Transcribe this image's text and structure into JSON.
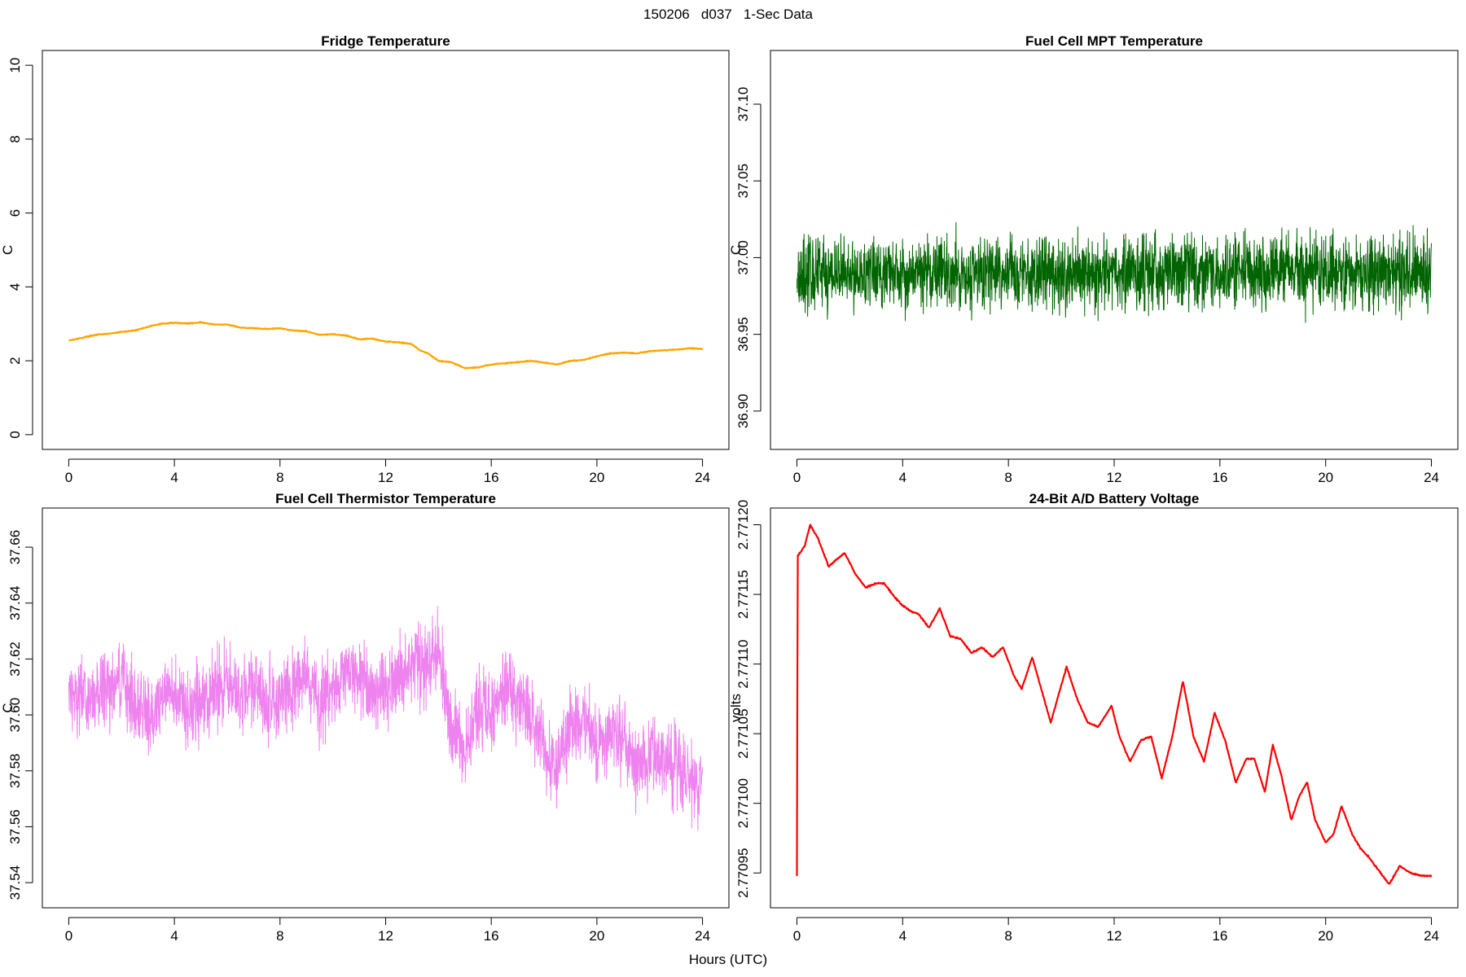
{
  "figure": {
    "title": "150206   d037   1-Sec Data",
    "xlabel": "Hours (UTC)"
  },
  "chart_data": [
    {
      "id": "fridge",
      "type": "line",
      "title": "Fridge Temperature",
      "ylabel": "C",
      "color": "#FFA500",
      "xlim": [
        -1,
        25
      ],
      "ylim": [
        -0.4,
        10.4
      ],
      "xticks": [
        0,
        4,
        8,
        12,
        16,
        20,
        24
      ],
      "yticks": [
        0,
        2,
        4,
        6,
        8,
        10
      ],
      "ytick_labels": [
        "0",
        "2",
        "4",
        "6",
        "8",
        "10"
      ],
      "noise": 0.02,
      "x": [
        0,
        0.5,
        1,
        1.5,
        2,
        2.5,
        3,
        3.5,
        4,
        4.5,
        5,
        5.5,
        6,
        6.5,
        7,
        7.5,
        8,
        8.5,
        9,
        9.5,
        10,
        10.5,
        11,
        11.5,
        12,
        12.5,
        13,
        13.3,
        13.6,
        14,
        14.5,
        15,
        15.5,
        16,
        16.5,
        17,
        17.5,
        18,
        18.5,
        19,
        19.5,
        20,
        20.5,
        21,
        21.5,
        22,
        22.5,
        23,
        23.5,
        24
      ],
      "y": [
        2.55,
        2.62,
        2.7,
        2.73,
        2.78,
        2.82,
        2.92,
        3.0,
        3.03,
        3.01,
        3.04,
        2.98,
        2.98,
        2.9,
        2.88,
        2.86,
        2.88,
        2.82,
        2.8,
        2.7,
        2.72,
        2.68,
        2.58,
        2.6,
        2.52,
        2.5,
        2.45,
        2.28,
        2.2,
        2.0,
        1.96,
        1.8,
        1.82,
        1.9,
        1.93,
        1.96,
        2.0,
        1.95,
        1.9,
        2.0,
        2.02,
        2.12,
        2.2,
        2.22,
        2.2,
        2.26,
        2.28,
        2.3,
        2.34,
        2.32
      ]
    },
    {
      "id": "mpt",
      "type": "line",
      "title": "Fuel Cell MPT Temperature",
      "ylabel": "C",
      "color": "#006400",
      "xlim": [
        -1,
        25
      ],
      "ylim": [
        36.875,
        37.135
      ],
      "xticks": [
        0,
        4,
        8,
        12,
        16,
        20,
        24
      ],
      "yticks": [
        36.9,
        36.95,
        37.0,
        37.05,
        37.1
      ],
      "ytick_labels": [
        "36.90",
        "36.95",
        "37.00",
        "37.05",
        "37.10"
      ],
      "noise": 0.035,
      "x": [
        0,
        24
      ],
      "y": [
        36.99,
        36.99
      ]
    },
    {
      "id": "thermistor",
      "type": "line",
      "title": "Fuel Cell Thermistor Temperature",
      "ylabel": "C",
      "color": "#EE82EE",
      "xlim": [
        -1,
        25
      ],
      "ylim": [
        37.531,
        37.674
      ],
      "xticks": [
        0,
        4,
        8,
        12,
        16,
        20,
        24
      ],
      "yticks": [
        37.54,
        37.56,
        37.58,
        37.6,
        37.62,
        37.64,
        37.66
      ],
      "ytick_labels": [
        "37.54",
        "37.56",
        "37.58",
        "37.60",
        "37.62",
        "37.64",
        "37.66"
      ],
      "noise": 0.02,
      "x": [
        0,
        0.5,
        1,
        1.5,
        2,
        2.5,
        3,
        3.5,
        4,
        4.5,
        5,
        5.5,
        6,
        6.5,
        7,
        7.5,
        8,
        8.5,
        9,
        9.5,
        10,
        10.5,
        11,
        11.5,
        12,
        12.5,
        13,
        13.5,
        14,
        14.5,
        15,
        15.5,
        16,
        16.5,
        17,
        17.5,
        18,
        18.5,
        19,
        19.5,
        20,
        20.5,
        21,
        21.5,
        22,
        22.5,
        23,
        23.5,
        24
      ],
      "y": [
        37.61,
        37.606,
        37.605,
        37.61,
        37.612,
        37.606,
        37.6,
        37.606,
        37.608,
        37.6,
        37.605,
        37.61,
        37.61,
        37.608,
        37.61,
        37.605,
        37.606,
        37.61,
        37.614,
        37.604,
        37.61,
        37.614,
        37.616,
        37.608,
        37.61,
        37.614,
        37.62,
        37.618,
        37.622,
        37.596,
        37.585,
        37.604,
        37.6,
        37.61,
        37.605,
        37.6,
        37.59,
        37.582,
        37.596,
        37.6,
        37.586,
        37.594,
        37.592,
        37.58,
        37.585,
        37.584,
        37.582,
        37.578,
        37.575
      ]
    },
    {
      "id": "battery",
      "type": "line",
      "title": "24-Bit A/D Battery Voltage",
      "ylabel": "volts",
      "color": "#FF0000",
      "xlim": [
        -1,
        25
      ],
      "ylim": [
        2.770925,
        2.771212
      ],
      "xticks": [
        0,
        4,
        8,
        12,
        16,
        20,
        24
      ],
      "yticks": [
        2.77095,
        2.771,
        2.77105,
        2.7711,
        2.77115,
        2.7712
      ],
      "ytick_labels": [
        "2.77095",
        "2.77100",
        "2.77105",
        "2.77110",
        "2.77115",
        "2.77120"
      ],
      "noise": 8e-07,
      "x": [
        0,
        0.03,
        0.05,
        0.3,
        0.5,
        0.8,
        1.2,
        1.5,
        1.8,
        2.2,
        2.6,
        3.0,
        3.3,
        3.7,
        4.0,
        4.3,
        4.6,
        5.0,
        5.4,
        5.8,
        6.2,
        6.6,
        7.0,
        7.4,
        7.8,
        8.2,
        8.5,
        8.9,
        9.2,
        9.6,
        10.2,
        10.6,
        11.0,
        11.4,
        11.9,
        12.2,
        12.6,
        13.0,
        13.4,
        13.8,
        14.2,
        14.6,
        15.0,
        15.4,
        15.8,
        16.2,
        16.6,
        17.0,
        17.3,
        17.7,
        18.0,
        18.3,
        18.7,
        19.0,
        19.3,
        19.6,
        20.0,
        20.3,
        20.6,
        21.0,
        21.3,
        21.6,
        22.0,
        22.4,
        22.8,
        23.2,
        23.6,
        24.0
      ],
      "y": [
        2.770948,
        2.771178,
        2.771178,
        2.771185,
        2.7712,
        2.77119,
        2.77117,
        2.771175,
        2.77118,
        2.771165,
        2.771155,
        2.771158,
        2.771158,
        2.771148,
        2.771142,
        2.771138,
        2.771136,
        2.771126,
        2.77114,
        2.77112,
        2.771118,
        2.771108,
        2.771112,
        2.771105,
        2.771112,
        2.771092,
        2.771082,
        2.771105,
        2.771085,
        2.771058,
        2.771098,
        2.771075,
        2.771058,
        2.771055,
        2.77107,
        2.771048,
        2.77103,
        2.771045,
        2.771048,
        2.771018,
        2.771048,
        2.771088,
        2.771048,
        2.77103,
        2.771065,
        2.771045,
        2.771015,
        2.771032,
        2.771032,
        2.771008,
        2.771042,
        2.771022,
        2.770988,
        2.771005,
        2.771015,
        2.770988,
        2.770972,
        2.770978,
        2.770998,
        2.770978,
        2.770968,
        2.770962,
        2.770952,
        2.770942,
        2.770955,
        2.77095,
        2.770948,
        2.770948
      ]
    }
  ]
}
